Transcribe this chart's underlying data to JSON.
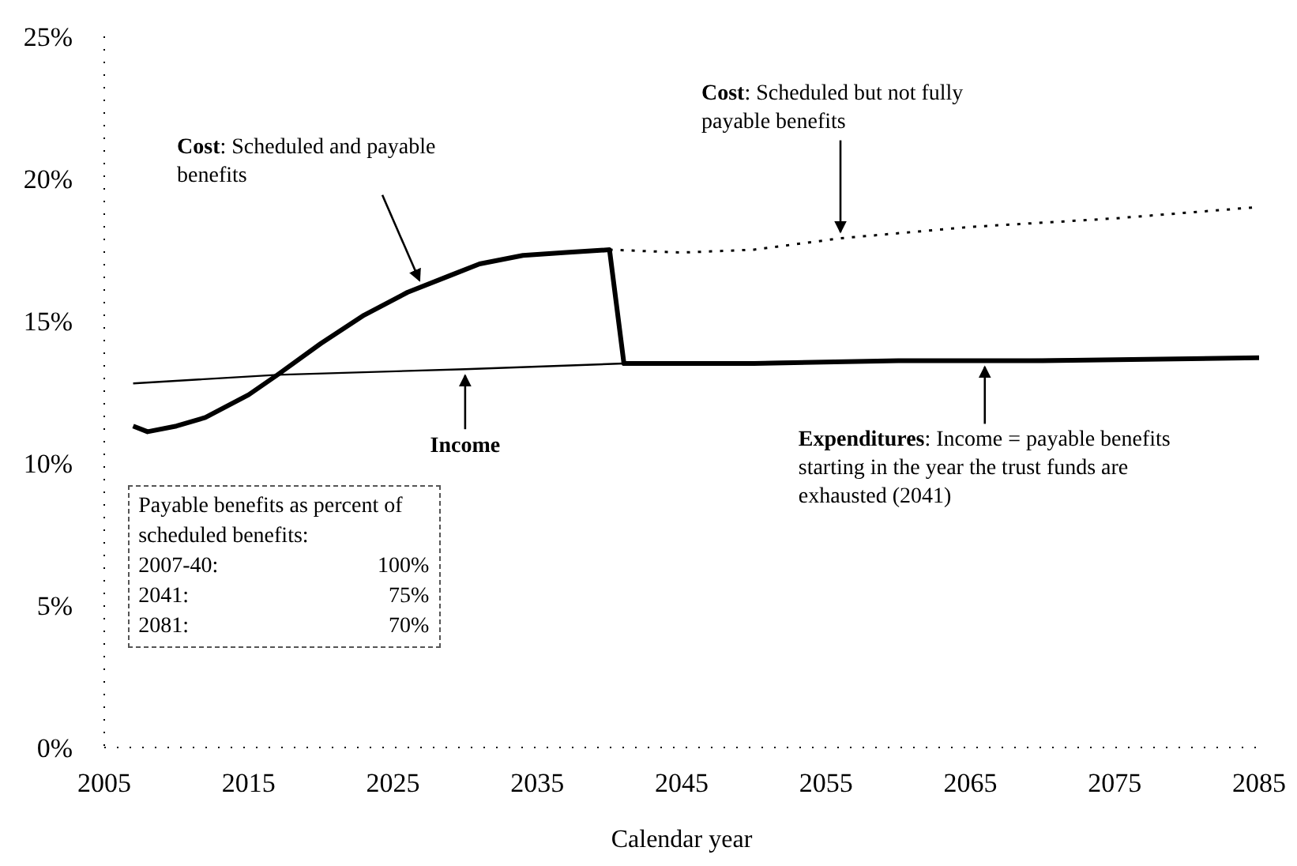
{
  "chart_data": {
    "type": "line",
    "xlabel": "Calendar year",
    "xlim": [
      2005,
      2085
    ],
    "xticks": [
      2005,
      2015,
      2025,
      2035,
      2045,
      2055,
      2065,
      2075,
      2085
    ],
    "ylim": [
      0,
      25
    ],
    "yticks": [
      {
        "value": 0,
        "label": "0%"
      },
      {
        "value": 5,
        "label": "5%"
      },
      {
        "value": 10,
        "label": "10%"
      },
      {
        "value": 15,
        "label": "15%"
      },
      {
        "value": 20,
        "label": "20%"
      },
      {
        "value": 25,
        "label": "25%"
      }
    ],
    "grid": false,
    "legend": false,
    "marker": "none",
    "series": [
      {
        "color": "#000000",
        "line_style": "solid",
        "x": [
          2007,
          2008,
          2010,
          2012,
          2015,
          2017,
          2020,
          2023,
          2026,
          2029,
          2031,
          2034,
          2037,
          2040,
          2041,
          2050,
          2060,
          2070,
          2085
        ],
        "values": [
          11.3,
          11.1,
          11.3,
          11.6,
          12.4,
          13.1,
          14.2,
          15.2,
          16.0,
          16.6,
          17.0,
          17.3,
          17.4,
          17.5,
          13.5,
          13.5,
          13.6,
          13.6,
          13.7
        ]
      },
      {
        "color": "#000000",
        "line_style": "solid",
        "x": [
          2007,
          2017,
          2030,
          2041,
          2060,
          2085
        ],
        "values": [
          12.8,
          13.1,
          13.3,
          13.5,
          13.6,
          13.7
        ]
      },
      {
        "color": "#000000",
        "line_style": "dotted",
        "x": [
          2040,
          2045,
          2050,
          2056,
          2065,
          2075,
          2085
        ],
        "values": [
          17.5,
          17.4,
          17.5,
          17.9,
          18.3,
          18.6,
          19.0
        ]
      }
    ],
    "annotations": [
      {
        "text": "Cost: Scheduled and payable benefits",
        "x": 2027,
        "y": 16.2
      },
      {
        "text": "Cost: Scheduled but not fully payable benefits",
        "x": 2056,
        "y": 17.9
      },
      {
        "text": "Income",
        "x": 2030,
        "y": 13.3
      },
      {
        "text": "Expenditures: Income = payable benefits starting in the year the trust funds are exhausted (2041)",
        "x": 2066,
        "y": 13.6
      },
      "Payable benefits as percent of scheduled benefits:",
      "2007-40: 100%",
      "2041: 75%",
      "2081: 70%"
    ]
  }
}
